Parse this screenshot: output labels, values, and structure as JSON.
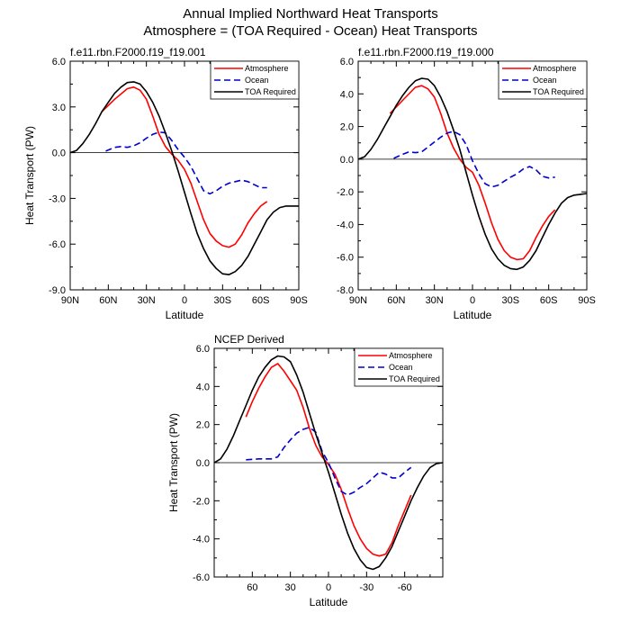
{
  "figure": {
    "title_line1": "Annual Implied Northward Heat Transports",
    "title_line2": "Atmosphere = (TOA Required - Ocean) Heat Transports"
  },
  "colors": {
    "atmosphere": "#ff0000",
    "ocean": "#0000cc",
    "toa": "#000000"
  },
  "chart_data": [
    {
      "type": "line",
      "title": "f.e11.rbn.F2000.f19_f19.001",
      "xlabel": "Latitude",
      "ylabel": "Heat Transport (PW)",
      "xlim": [
        90,
        -90
      ],
      "ylim": [
        -9,
        6
      ],
      "xticks": [
        90,
        60,
        30,
        0,
        -30,
        -60,
        -90
      ],
      "xtick_labels": [
        "90N",
        "60N",
        "30N",
        "0",
        "30S",
        "60S",
        "90S"
      ],
      "yticks": [
        6,
        3,
        0,
        -3,
        -6,
        -9
      ],
      "ytick_labels": [
        "6.0",
        "3.0",
        "0.0",
        "-3.0",
        "-6.0",
        "-9.0"
      ],
      "legend": [
        "Atmosphere",
        "Ocean",
        "TOA Required"
      ],
      "legend_position": "top-right",
      "series": [
        {
          "name": "Atmosphere",
          "style": "solid",
          "color": "atmosphere",
          "x": [
            65,
            55,
            45,
            40,
            35,
            30,
            25,
            20,
            15,
            10,
            5,
            0,
            -5,
            -10,
            -15,
            -20,
            -25,
            -30,
            -35,
            -40,
            -45,
            -50,
            -55,
            -60,
            -65
          ],
          "y": [
            2.7,
            3.5,
            4.2,
            4.3,
            4.1,
            3.5,
            2.4,
            1.2,
            0.4,
            -0.1,
            -0.5,
            -1.1,
            -2.0,
            -3.2,
            -4.4,
            -5.3,
            -5.8,
            -6.1,
            -6.2,
            -6.0,
            -5.4,
            -4.6,
            -4.0,
            -3.5,
            -3.2
          ]
        },
        {
          "name": "Ocean",
          "style": "dashed",
          "color": "ocean",
          "x": [
            62,
            55,
            50,
            45,
            40,
            35,
            30,
            25,
            20,
            15,
            10,
            5,
            0,
            -5,
            -10,
            -15,
            -20,
            -25,
            -30,
            -35,
            -40,
            -45,
            -50,
            -55,
            -60,
            -65
          ],
          "y": [
            0.1,
            0.35,
            0.4,
            0.35,
            0.45,
            0.65,
            0.95,
            1.2,
            1.35,
            1.3,
            0.8,
            0.2,
            -0.3,
            -0.9,
            -1.7,
            -2.5,
            -2.7,
            -2.5,
            -2.2,
            -2.0,
            -1.9,
            -1.8,
            -1.9,
            -2.1,
            -2.3,
            -2.3
          ]
        },
        {
          "name": "TOA Required",
          "style": "solid",
          "color": "toa",
          "x": [
            90,
            85,
            80,
            75,
            70,
            65,
            60,
            55,
            50,
            45,
            40,
            35,
            30,
            25,
            20,
            15,
            10,
            5,
            0,
            -5,
            -10,
            -15,
            -20,
            -25,
            -30,
            -35,
            -40,
            -45,
            -50,
            -55,
            -60,
            -65,
            -70,
            -75,
            -80,
            -85,
            -90
          ],
          "y": [
            0.0,
            0.15,
            0.6,
            1.2,
            1.9,
            2.7,
            3.3,
            3.9,
            4.3,
            4.6,
            4.65,
            4.5,
            4.0,
            3.3,
            2.4,
            1.3,
            0.1,
            -1.2,
            -2.6,
            -4.0,
            -5.3,
            -6.3,
            -7.1,
            -7.6,
            -7.95,
            -8.0,
            -7.8,
            -7.4,
            -6.8,
            -6.0,
            -5.2,
            -4.4,
            -3.9,
            -3.6,
            -3.5,
            -3.5,
            -3.5
          ]
        }
      ]
    },
    {
      "type": "line",
      "title": "f.e11.rbn.F2000.f19_f19.000",
      "xlabel": "Latitude",
      "ylabel": "",
      "xlim": [
        90,
        -90
      ],
      "ylim": [
        -8,
        6
      ],
      "xticks": [
        90,
        60,
        30,
        0,
        -30,
        -60,
        -90
      ],
      "xtick_labels": [
        "90N",
        "60N",
        "30N",
        "0",
        "30S",
        "60S",
        "90S"
      ],
      "yticks": [
        6,
        4,
        2,
        0,
        -2,
        -4,
        -6,
        -8
      ],
      "ytick_labels": [
        "6.0",
        "4.0",
        "2.0",
        "0.0",
        "-2.0",
        "-4.0",
        "-6.0",
        "-8.0"
      ],
      "legend": [
        "Atmosphere",
        "Ocean",
        "TOA Required"
      ],
      "legend_position": "top-right",
      "series": [
        {
          "name": "Atmosphere",
          "style": "solid",
          "color": "atmosphere",
          "x": [
            65,
            55,
            45,
            40,
            35,
            30,
            25,
            20,
            15,
            10,
            5,
            0,
            -5,
            -10,
            -15,
            -20,
            -25,
            -30,
            -35,
            -40,
            -45,
            -50,
            -55,
            -60,
            -65
          ],
          "y": [
            2.8,
            3.6,
            4.4,
            4.5,
            4.3,
            3.8,
            2.8,
            1.6,
            0.7,
            0.0,
            -0.5,
            -0.8,
            -1.6,
            -2.7,
            -3.9,
            -4.9,
            -5.6,
            -6.0,
            -6.15,
            -6.1,
            -5.6,
            -4.8,
            -4.1,
            -3.5,
            -3.1
          ]
        },
        {
          "name": "Ocean",
          "style": "dashed",
          "color": "ocean",
          "x": [
            62,
            55,
            50,
            45,
            40,
            35,
            30,
            25,
            20,
            15,
            10,
            5,
            0,
            -5,
            -10,
            -15,
            -20,
            -25,
            -30,
            -35,
            -40,
            -45,
            -50,
            -55,
            -60,
            -65
          ],
          "y": [
            0.05,
            0.3,
            0.45,
            0.4,
            0.45,
            0.75,
            1.05,
            1.35,
            1.6,
            1.7,
            1.5,
            0.9,
            -0.1,
            -0.9,
            -1.5,
            -1.7,
            -1.6,
            -1.35,
            -1.1,
            -0.9,
            -0.6,
            -0.45,
            -0.65,
            -1.05,
            -1.15,
            -1.1
          ]
        },
        {
          "name": "TOA Required",
          "style": "solid",
          "color": "toa",
          "x": [
            90,
            85,
            80,
            75,
            70,
            65,
            60,
            55,
            50,
            45,
            40,
            35,
            30,
            25,
            20,
            15,
            10,
            5,
            0,
            -5,
            -10,
            -15,
            -20,
            -25,
            -30,
            -35,
            -40,
            -45,
            -50,
            -55,
            -60,
            -65,
            -70,
            -75,
            -80,
            -85,
            -90
          ],
          "y": [
            0.0,
            0.15,
            0.6,
            1.2,
            1.9,
            2.6,
            3.3,
            3.9,
            4.4,
            4.8,
            4.95,
            4.9,
            4.5,
            3.8,
            2.9,
            1.8,
            0.6,
            -0.8,
            -2.2,
            -3.5,
            -4.6,
            -5.5,
            -6.1,
            -6.5,
            -6.7,
            -6.75,
            -6.6,
            -6.2,
            -5.6,
            -4.8,
            -4.0,
            -3.3,
            -2.7,
            -2.35,
            -2.2,
            -2.15,
            -2.1
          ]
        }
      ]
    },
    {
      "type": "line",
      "title": "NCEP Derived",
      "xlabel": "Latitude",
      "ylabel": "Heat Transport (PW)",
      "xlim": [
        90,
        -90
      ],
      "ylim": [
        -6,
        6
      ],
      "xticks": [
        60,
        30,
        0,
        -30,
        -60
      ],
      "xtick_labels": [
        "60",
        "30",
        "0",
        "-30",
        "-60"
      ],
      "yticks": [
        6,
        4,
        2,
        0,
        -2,
        -4,
        -6
      ],
      "ytick_labels": [
        "6.0",
        "4.0",
        "2.0",
        "0.0",
        "-2.0",
        "-4.0",
        "-6.0"
      ],
      "legend": [
        "Atmosphere",
        "Ocean",
        "TOA Required"
      ],
      "legend_position": "top-right",
      "series": [
        {
          "name": "Atmosphere",
          "style": "solid",
          "color": "atmosphere",
          "x": [
            65,
            60,
            55,
            50,
            45,
            40,
            35,
            30,
            25,
            20,
            15,
            10,
            5,
            0,
            -5,
            -10,
            -15,
            -20,
            -25,
            -30,
            -35,
            -40,
            -45,
            -50,
            -55,
            -60,
            -65
          ],
          "y": [
            2.4,
            3.2,
            3.9,
            4.5,
            5.0,
            5.2,
            4.8,
            4.3,
            3.8,
            2.9,
            1.8,
            0.9,
            0.3,
            -0.1,
            -0.6,
            -1.4,
            -2.4,
            -3.3,
            -4.0,
            -4.5,
            -4.8,
            -4.9,
            -4.8,
            -4.2,
            -3.3,
            -2.5,
            -1.7
          ]
        },
        {
          "name": "Ocean",
          "style": "dashed",
          "color": "ocean",
          "x": [
            65,
            55,
            45,
            40,
            35,
            30,
            25,
            20,
            15,
            10,
            5,
            0,
            -5,
            -10,
            -15,
            -20,
            -25,
            -30,
            -35,
            -40,
            -45,
            -50,
            -55,
            -60,
            -65
          ],
          "y": [
            0.15,
            0.2,
            0.2,
            0.3,
            0.8,
            1.2,
            1.55,
            1.75,
            1.85,
            1.6,
            0.6,
            0.0,
            -0.8,
            -1.5,
            -1.7,
            -1.55,
            -1.3,
            -1.1,
            -0.8,
            -0.5,
            -0.6,
            -0.8,
            -0.8,
            -0.5,
            -0.25
          ]
        },
        {
          "name": "TOA Required",
          "style": "solid",
          "color": "toa",
          "x": [
            90,
            85,
            80,
            75,
            70,
            65,
            60,
            55,
            50,
            45,
            40,
            35,
            30,
            25,
            20,
            15,
            10,
            5,
            0,
            -5,
            -10,
            -15,
            -20,
            -25,
            -30,
            -35,
            -40,
            -45,
            -50,
            -55,
            -60,
            -65,
            -70,
            -75,
            -80,
            -85,
            -90
          ],
          "y": [
            0.0,
            0.2,
            0.7,
            1.4,
            2.2,
            3.0,
            3.8,
            4.5,
            5.0,
            5.4,
            5.6,
            5.55,
            5.3,
            4.6,
            3.7,
            2.6,
            1.5,
            0.5,
            -0.5,
            -1.6,
            -2.7,
            -3.7,
            -4.5,
            -5.1,
            -5.5,
            -5.6,
            -5.45,
            -5.0,
            -4.4,
            -3.6,
            -2.8,
            -2.0,
            -1.3,
            -0.7,
            -0.25,
            -0.05,
            0.0
          ]
        }
      ]
    }
  ]
}
